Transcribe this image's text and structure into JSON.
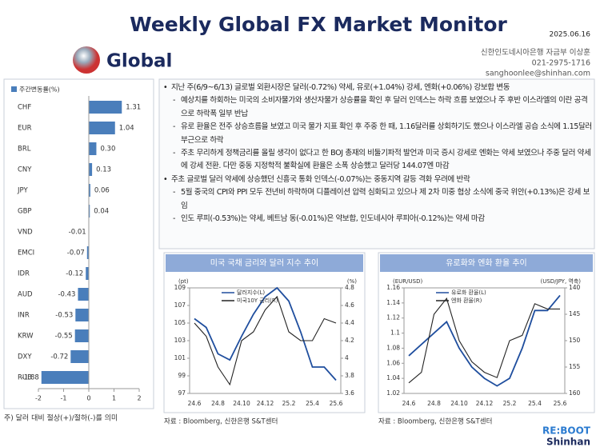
{
  "header": {
    "title": "Weekly Global FX Market Monitor",
    "date": "2025.06.16",
    "section": "Global",
    "org": "신한인도네시아은행 자금부 이상훈",
    "phone": "021-2975-1716",
    "email": "sanghoonlee@shinhan.com"
  },
  "bullets": [
    {
      "text": "지난 주(6/9~6/13) 글로벌 외환시장은 달러(-0.72%) 약세, 유로(+1.04%) 강세, 엔화(+0.06%) 강보합 변동",
      "subs": [
        "예상치를 하회하는 미국의 소비자물가와 생산자물가 상승률을 확인 후 달러 인덱스는 하락 흐름 보였으나 주 후반 이스라엘의 이란 공격으로 하락폭 일부 반납",
        "유로 환율은 전주 상승흐름을 보였고 미국 물가 지표 확인 후 주중 한 때, 1.16달러를 상회하기도 했으나 이스라엘 공습 소식에 1.15달러 부근으로 하락",
        "주초 무리하게 정책금리를 올릴 생각이 없다고 한 BOJ 총재의 비둘기파적 발언과 미국 증시 강세로 엔화는 약세 보였으나 주중 달러 약세에 강세 전환. 다만 중동 지정학적 불확실에 환율은 소폭 상승했고 달러당 144.07엔 마감"
      ]
    },
    {
      "text": "주초 글로벌 달러 약세에 상승했던 신흥국 통화 인덱스(-0.07%)는 중동지역 갈등 격화 우려에 반락",
      "subs": [
        "5월 중국의 CPI와 PPI 모두 전년비 하락하며 디플레이션 압력 심화되고 있으나 제 2차 미중 협상 소식에 중국 위안(+0.13%)은 강세 보임",
        "인도 루피(-0.53%)는 약세, 베트남 동(-0.01%)은 약보합, 인도네시아 루피아(-0.12%)는 약세 마감"
      ]
    }
  ],
  "note": "주) 달러 대비 절상(+)/절하(-)를 의미",
  "footer": {
    "brand": "RE:BOOT",
    "bank": "Shinhan"
  },
  "chart_data": [
    {
      "type": "bar",
      "orientation": "horizontal",
      "title": "주간변동률(%)",
      "color": "#4a7ebb",
      "categories": [
        "CHF",
        "EUR",
        "BRL",
        "CNY",
        "JPY",
        "GBP",
        "VND",
        "EMCI",
        "IDR",
        "AUD",
        "INR",
        "KRW",
        "DXY",
        "RUB"
      ],
      "values": [
        1.31,
        1.04,
        0.3,
        0.13,
        0.06,
        0.04,
        -0.01,
        -0.07,
        -0.12,
        -0.43,
        -0.53,
        -0.55,
        -0.72,
        -1.88
      ],
      "value_labels": [
        "1.31",
        "1.04",
        "0.30",
        "0.13",
        "0.06",
        "0.04",
        "-0.01",
        "-0.07",
        "-0.12",
        "-0.43",
        "-0.53",
        "-0.55",
        "-0.72",
        "-1.88"
      ],
      "xlim": [
        -2,
        2
      ],
      "xticks": [
        -2,
        -1,
        0,
        1,
        2
      ]
    },
    {
      "type": "line",
      "title": "미국 국채 금리와 달러 지수 추이",
      "source": "자료 : Bloomberg, 신한은행 S&T센터",
      "y_label": "(pt)",
      "y2_label": "(%)",
      "categories": [
        "24.6",
        null,
        "24.8",
        null,
        "24.10",
        null,
        "24.12",
        null,
        "25.2",
        null,
        "25.4",
        null,
        "25.6"
      ],
      "series": [
        {
          "name": "달러지수(L)",
          "color": "#1f4e9e",
          "values": [
            105.5,
            104.5,
            101.5,
            100.8,
            103.5,
            106,
            108,
            109,
            107.5,
            104,
            100,
            100,
            98.5
          ]
        },
        {
          "name": "미국10Y 금리(R)",
          "color": "#222222",
          "axis": "y2",
          "values": [
            4.4,
            4.25,
            3.9,
            3.7,
            4.2,
            4.3,
            4.55,
            4.7,
            4.3,
            4.2,
            4.2,
            4.45,
            4.4
          ]
        }
      ],
      "ylim": [
        97,
        109
      ],
      "yticks": [
        97,
        99,
        101,
        103,
        105,
        107,
        109
      ],
      "y2lim": [
        3.6,
        4.8
      ],
      "y2ticks": [
        3.6,
        3.8,
        4,
        4.2,
        4.4,
        4.6,
        4.8
      ]
    },
    {
      "type": "line",
      "title": "유로화와 엔화 환율 추이",
      "source": "자료 : Bloomberg, 신한은행 S&T센터",
      "y_label": "(EUR/USD)",
      "y2_label": "(USD/JPY, 역축)",
      "categories": [
        "24.6",
        null,
        "24.8",
        null,
        "24.10",
        null,
        "24.12",
        null,
        "25.2",
        null,
        "25.4",
        null,
        "25.6"
      ],
      "series": [
        {
          "name": "유로화 환율(L)",
          "color": "#1f4e9e",
          "values": [
            1.07,
            1.085,
            1.1,
            1.115,
            1.08,
            1.055,
            1.04,
            1.03,
            1.04,
            1.08,
            1.13,
            1.13,
            1.15
          ]
        },
        {
          "name": "엔화 환율(R)",
          "color": "#222222",
          "axis": "y2",
          "values": [
            158,
            156,
            145,
            142,
            150,
            154,
            156,
            157,
            150,
            149,
            143,
            144,
            144
          ]
        }
      ],
      "ylim": [
        1.02,
        1.16
      ],
      "yticks": [
        1.02,
        1.04,
        1.06,
        1.08,
        1.1,
        1.12,
        1.14,
        1.16
      ],
      "y2lim": [
        160,
        140
      ],
      "y2ticks": [
        140,
        145,
        150,
        155,
        160
      ]
    }
  ]
}
